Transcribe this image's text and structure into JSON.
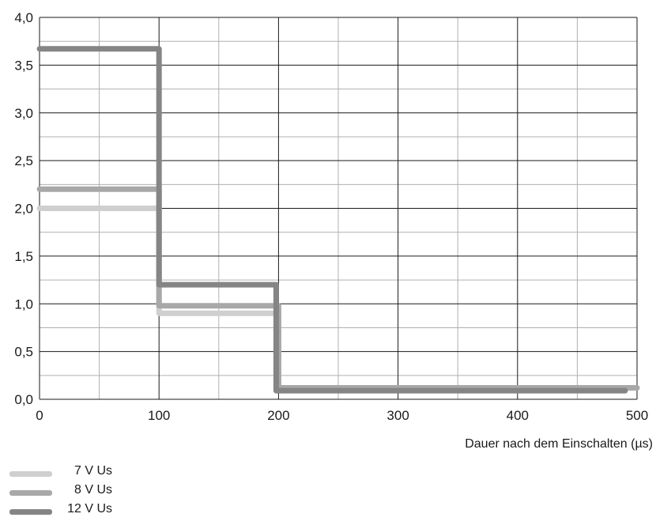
{
  "chart_data": {
    "type": "line",
    "xlabel": "Dauer nach dem Einschalten (µs)",
    "ylabel": "",
    "xlim": [
      0,
      500
    ],
    "ylim": [
      0,
      4
    ],
    "x_ticks": [
      "0",
      "100",
      "200",
      "300",
      "400",
      "500"
    ],
    "y_ticks": [
      "0,0",
      "0,5",
      "1,0",
      "1,5",
      "2,0",
      "2,5",
      "3,0",
      "3,5",
      "4,0"
    ],
    "grid": true,
    "legend_placement": "bottom-left",
    "series": [
      {
        "name": "7 V Us",
        "color": "#cfcfcf",
        "points": [
          [
            0,
            2.0
          ],
          [
            100,
            2.0
          ],
          [
            100,
            0.9
          ],
          [
            200,
            0.9
          ],
          [
            200,
            0.12
          ],
          [
            500,
            0.12
          ]
        ]
      },
      {
        "name": "8 V Us",
        "color": "#a8a8a8",
        "points": [
          [
            0,
            2.2
          ],
          [
            100,
            2.2
          ],
          [
            100,
            0.98
          ],
          [
            200,
            0.98
          ],
          [
            200,
            0.12
          ],
          [
            500,
            0.12
          ]
        ]
      },
      {
        "name": "12 V Us",
        "color": "#858585",
        "points": [
          [
            0,
            3.67
          ],
          [
            100,
            3.67
          ],
          [
            100,
            1.2
          ],
          [
            198,
            1.2
          ],
          [
            198,
            0.09
          ],
          [
            490,
            0.09
          ]
        ]
      }
    ]
  }
}
